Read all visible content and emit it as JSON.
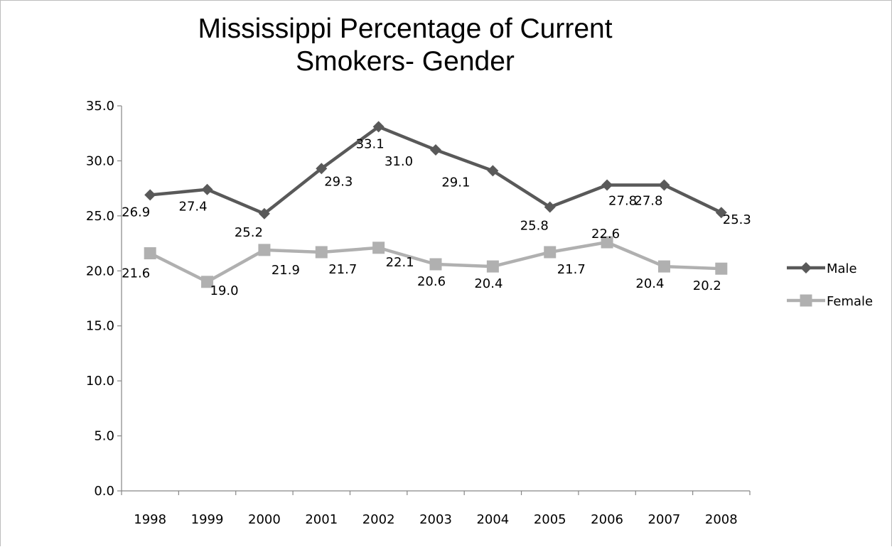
{
  "chart_data": {
    "type": "line",
    "title": "Mississippi Percentage of Current Smokers- Gender",
    "title_lines": [
      "Mississippi Percentage of Current",
      "Smokers- Gender"
    ],
    "xlabel": "",
    "ylabel": "",
    "x": [
      "1998",
      "1999",
      "2000",
      "2001",
      "2002",
      "2003",
      "2004",
      "2005",
      "2006",
      "2007",
      "2008"
    ],
    "ylim": [
      0,
      35
    ],
    "yticks": [
      "0.0",
      "5.0",
      "10.0",
      "15.0",
      "20.0",
      "25.0",
      "30.0",
      "35.0"
    ],
    "grid": false,
    "legend_position": "right",
    "series": [
      {
        "name": "Male",
        "color": "#595959",
        "marker": "diamond",
        "values": [
          26.9,
          27.4,
          25.2,
          29.3,
          33.1,
          31.0,
          29.1,
          25.8,
          27.8,
          27.8,
          25.3
        ],
        "labels": [
          "26.9",
          "27.4",
          "25.2",
          "29.3",
          "33.1",
          "31.0",
          "29.1",
          "25.8",
          "27.8",
          "27.8",
          "25.3"
        ]
      },
      {
        "name": "Female",
        "color": "#b0b0b0",
        "marker": "square",
        "values": [
          21.6,
          19.0,
          21.9,
          21.7,
          22.1,
          20.6,
          20.4,
          21.7,
          22.6,
          20.4,
          20.2
        ],
        "labels": [
          "21.6",
          "19.0",
          "21.9",
          "21.7",
          "22.1",
          "20.6",
          "20.4",
          "21.7",
          "22.6",
          "20.4",
          "20.2"
        ]
      }
    ]
  }
}
